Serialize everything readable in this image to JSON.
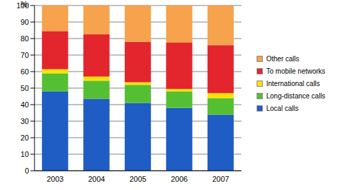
{
  "chart_data": {
    "type": "bar",
    "stacked": true,
    "grid": true,
    "legend": "right",
    "y_label": "%",
    "categories": [
      "2003",
      "2004",
      "2005",
      "2006",
      "2007"
    ],
    "ylim": [
      0,
      100
    ],
    "yticks": [
      0,
      10,
      20,
      30,
      40,
      50,
      60,
      70,
      80,
      90,
      100
    ],
    "series": [
      {
        "name": "Local calls",
        "color": "#1f5cc4",
        "values": [
          48,
          43.5,
          41,
          38,
          34
        ]
      },
      {
        "name": "Long-distance calls",
        "color": "#55bf34",
        "values": [
          11,
          11,
          11,
          10,
          10
        ]
      },
      {
        "name": "International calls",
        "color": "#ffe200",
        "values": [
          2.5,
          2.5,
          1.5,
          1.5,
          3
        ]
      },
      {
        "name": "To mobile networks",
        "color": "#e3262d",
        "values": [
          23,
          25.5,
          24.5,
          28,
          29
        ]
      },
      {
        "name": "Other calls",
        "color": "#f7a24c",
        "values": [
          15.5,
          17.5,
          22,
          22.5,
          24
        ]
      }
    ]
  }
}
